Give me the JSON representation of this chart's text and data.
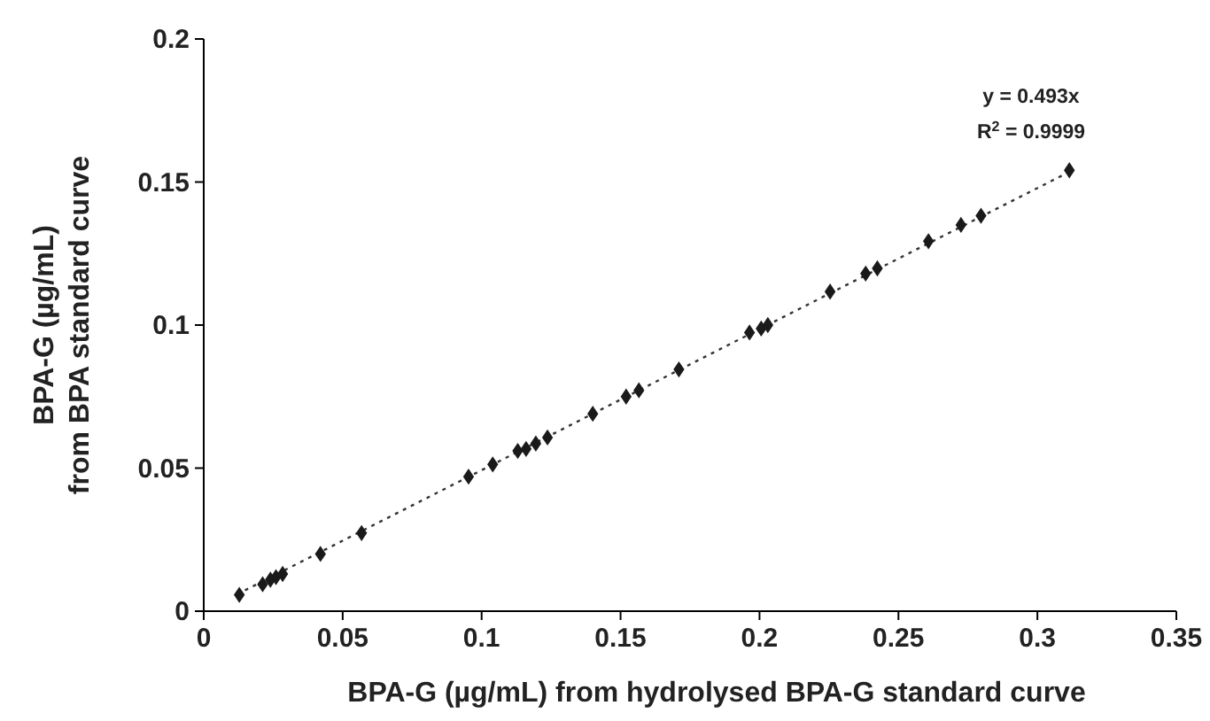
{
  "chart_data": {
    "type": "scatter",
    "xlabel": "BPA-G (µg/mL) from hydrolysed BPA-G standard curve",
    "ylabel": "BPA-G (µg/mL)\nfrom BPA standard curve",
    "xlim": [
      0,
      0.35
    ],
    "xticks": [
      0,
      0.05,
      0.1,
      0.15,
      0.2,
      0.25,
      0.3,
      0.35
    ],
    "ylim": [
      0,
      0.2
    ],
    "yticks": [
      0,
      0.05,
      0.1,
      0.15,
      0.2
    ],
    "grid": false,
    "marker": "diamond",
    "annotations": [
      "y = 0.493x",
      "R$^{2}$ = 0.9999"
    ],
    "series": [
      {
        "color": "#1a1a1a",
        "x": [
          0.0128,
          0.0212,
          0.024,
          0.026,
          0.0284,
          0.042,
          0.0568,
          0.0953,
          0.104,
          0.113,
          0.116,
          0.1195,
          0.1237,
          0.14,
          0.152,
          0.1566,
          0.171,
          0.1964,
          0.2006,
          0.203,
          0.2254,
          0.2382,
          0.2424,
          0.2608,
          0.2725,
          0.2797,
          0.3115
        ],
        "values": [
          0.0057,
          0.0094,
          0.011,
          0.0119,
          0.013,
          0.02,
          0.0273,
          0.047,
          0.0513,
          0.056,
          0.0567,
          0.0586,
          0.0607,
          0.069,
          0.075,
          0.0772,
          0.0845,
          0.0974,
          0.0988,
          0.1,
          0.1117,
          0.118,
          0.1198,
          0.1293,
          0.135,
          0.1382,
          0.1541
        ]
      },
      {
        "type": "line",
        "color": "#333333",
        "line_style": "dotted",
        "marker": "none",
        "x": [
          0.012,
          0.312
        ],
        "values": [
          0.0059,
          0.1538
        ]
      }
    ]
  }
}
